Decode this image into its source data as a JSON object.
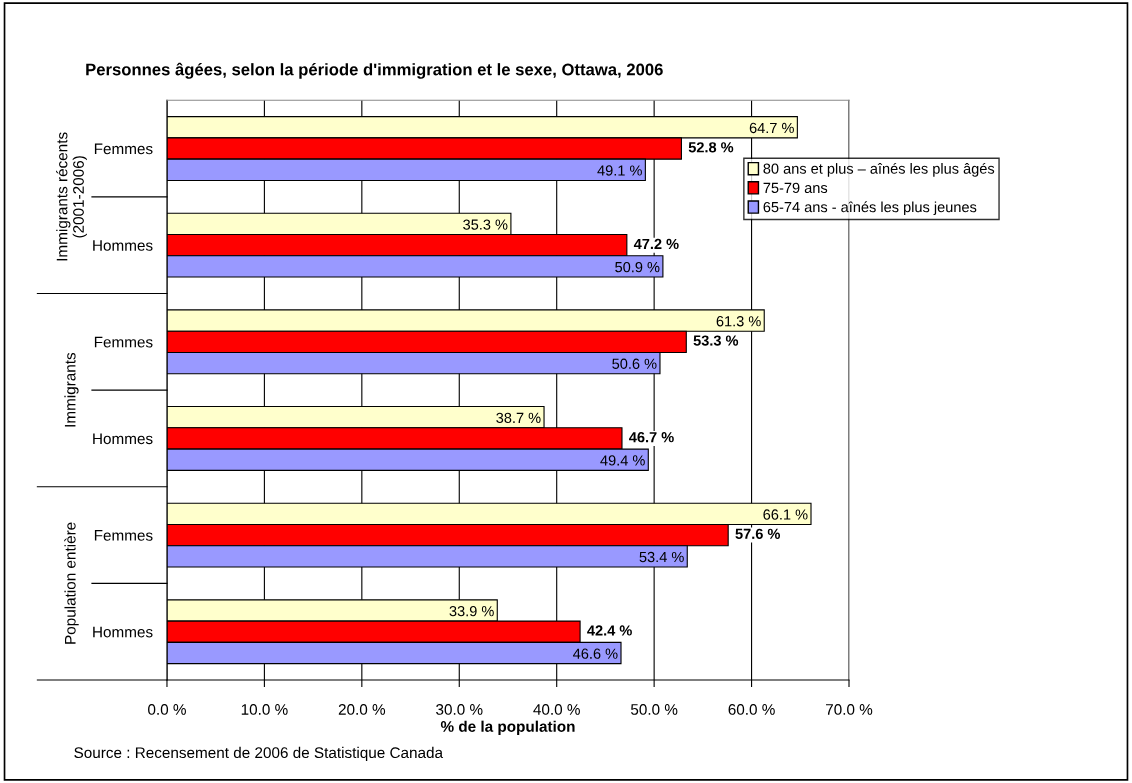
{
  "chart_data": {
    "type": "bar",
    "orientation": "horizontal",
    "title": "Personnes âgées, selon la période d'immigration et le sexe, Ottawa, 2006",
    "xlabel": "% de la population",
    "categories": [
      "Femmes",
      "Hommes",
      "Femmes",
      "Hommes",
      "Femmes",
      "Hommes"
    ],
    "series": [
      {
        "name": "80 ans et plus – aînés les plus âgés",
        "color": "#ffffcc",
        "values": [
          64.7,
          35.3,
          61.3,
          38.7,
          66.1,
          33.9
        ],
        "value_labels": [
          "64.7 %",
          "35.3 %",
          "61.3 %",
          "38.7 %",
          "66.1 %",
          "33.9 %"
        ]
      },
      {
        "name": "75-79 ans",
        "color": "#ff0000",
        "values": [
          52.8,
          47.2,
          53.3,
          46.7,
          57.6,
          42.4
        ],
        "value_labels": [
          "52.8 %",
          "47.2 %",
          "53.3 %",
          "46.7 %",
          "57.6 %",
          "42.4 %"
        ]
      },
      {
        "name": "65-74 ans - aînés les plus jeunes",
        "color": "#9999ff",
        "values": [
          49.1,
          50.9,
          50.6,
          49.4,
          53.4,
          46.6
        ],
        "value_labels": [
          "49.1 %",
          "50.9 %",
          "50.6 %",
          "49.4 %",
          "53.4 %",
          "46.6 %"
        ]
      }
    ],
    "xlim": [
      0,
      70
    ],
    "xticks": [
      {
        "value": 0,
        "label": "0.0 %"
      },
      {
        "value": 10,
        "label": "10.0 %"
      },
      {
        "value": 20,
        "label": "20.0 %"
      },
      {
        "value": 30,
        "label": "30.0 %"
      },
      {
        "value": 40,
        "label": "40.0 %"
      },
      {
        "value": 50,
        "label": "50.0 %"
      },
      {
        "value": 60,
        "label": "60.0 %"
      },
      {
        "value": 70,
        "label": "70.0 %"
      }
    ],
    "grid": "x",
    "legend": "top right",
    "annotations": [
      "Immigrants récents\n(2001-2006)",
      "Immigrants",
      "Population entière",
      "Source : Recensement de 2006 de Statistique Canada"
    ]
  }
}
